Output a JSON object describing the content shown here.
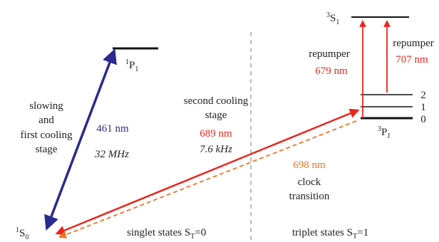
{
  "colors": {
    "blue": "#2b2a8f",
    "red": "#e8261c",
    "orange": "#ef7320",
    "black": "#111111",
    "dash": "#777777"
  },
  "states": {
    "s0": {
      "sup": "1",
      "letter": "S",
      "sub": "0"
    },
    "p1": {
      "sup": "1",
      "letter": "P",
      "sub": "1"
    },
    "s1": {
      "sup": "3",
      "letter": "S",
      "sub": "1"
    },
    "pj": {
      "sup": "3",
      "letter": "P",
      "sub": "J",
      "levels": [
        "2",
        "1",
        "0"
      ]
    }
  },
  "labels": {
    "slowing": [
      "slowing",
      "and",
      "first cooling",
      "stage"
    ],
    "second": [
      "second cooling",
      "stage"
    ],
    "clock": [
      "clock",
      "transition"
    ],
    "repumper1": "repumper",
    "repumper2": "repumper"
  },
  "transitions": {
    "blue_nm": "461 nm",
    "blue_width": "32 MHz",
    "red_nm": "689 nm",
    "red_width": "7.6 kHz",
    "clock_nm": "698 nm",
    "rep1_nm": "679 nm",
    "rep2_nm": "707 nm"
  },
  "footer": {
    "singlet": "singlet states S",
    "singlet_sub": "T",
    "singlet_val": "=0",
    "triplet": "triplet states S",
    "triplet_sub": "T",
    "triplet_val": "=1"
  }
}
